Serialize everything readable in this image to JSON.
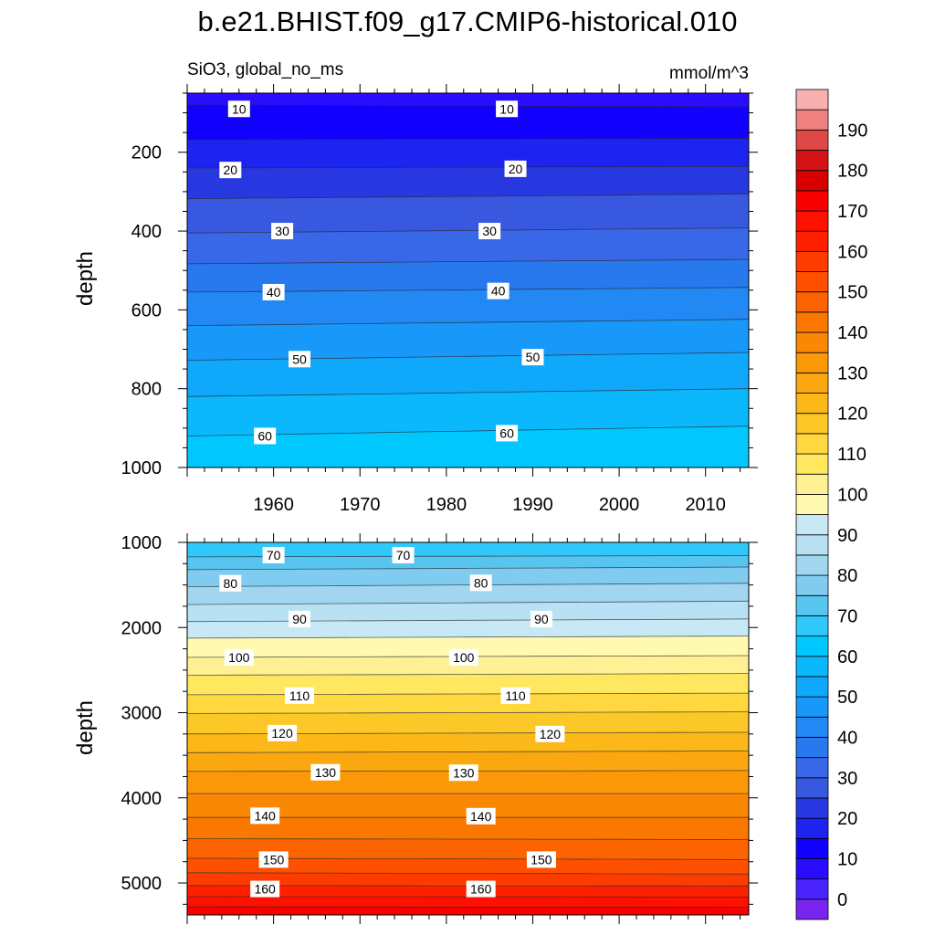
{
  "chart_data": {
    "type": "heatmap",
    "title": "b.e21.BHIST.f09_g17.CMIP6-historical.010",
    "left_label": "SiO3, global_no_ms",
    "units": "mmol/m^3",
    "panels": [
      {
        "name": "upper",
        "xlabel": "",
        "ylabel": "depth",
        "xlim": [
          1950,
          2015
        ],
        "ylim": [
          1000,
          50
        ],
        "y_reversed": true,
        "xticks": [
          1960,
          1970,
          1980,
          1990,
          2000,
          2010
        ],
        "yticks": [
          200,
          400,
          600,
          800,
          1000
        ],
        "contours": [
          {
            "level": 10,
            "y_start": 80,
            "y_end": 85
          },
          {
            "level": 15,
            "y_start": 168,
            "y_end": 165
          },
          {
            "level": 20,
            "y_start": 240,
            "y_end": 236
          },
          {
            "level": 25,
            "y_start": 318,
            "y_end": 306
          },
          {
            "level": 30,
            "y_start": 405,
            "y_end": 392
          },
          {
            "level": 35,
            "y_start": 483,
            "y_end": 472
          },
          {
            "level": 40,
            "y_start": 555,
            "y_end": 543
          },
          {
            "level": 45,
            "y_start": 640,
            "y_end": 624
          },
          {
            "level": 50,
            "y_start": 728,
            "y_end": 708
          },
          {
            "level": 55,
            "y_start": 820,
            "y_end": 800
          },
          {
            "level": 60,
            "y_start": 920,
            "y_end": 895
          }
        ],
        "contour_labels": [
          {
            "text": "10",
            "x": 1956,
            "y": 90
          },
          {
            "text": "10",
            "x": 1987,
            "y": 90
          },
          {
            "text": "20",
            "x": 1955,
            "y": 245
          },
          {
            "text": "20",
            "x": 1988,
            "y": 242
          },
          {
            "text": "30",
            "x": 1961,
            "y": 400
          },
          {
            "text": "30",
            "x": 1985,
            "y": 400
          },
          {
            "text": "40",
            "x": 1960,
            "y": 555
          },
          {
            "text": "40",
            "x": 1986,
            "y": 552
          },
          {
            "text": "50",
            "x": 1963,
            "y": 725
          },
          {
            "text": "50",
            "x": 1990,
            "y": 720
          },
          {
            "text": "60",
            "x": 1959,
            "y": 920
          },
          {
            "text": "60",
            "x": 1987,
            "y": 913
          }
        ]
      },
      {
        "name": "lower",
        "xlabel": "",
        "ylabel": "depth",
        "xlim": [
          1950,
          2015
        ],
        "ylim": [
          5375,
          1000
        ],
        "y_reversed": true,
        "yticks": [
          1000,
          2000,
          3000,
          4000,
          5000
        ],
        "contours": [
          {
            "level": 70,
            "y_start": 1170,
            "y_end": 1155
          },
          {
            "level": 75,
            "y_start": 1320,
            "y_end": 1290
          },
          {
            "level": 80,
            "y_start": 1520,
            "y_end": 1480
          },
          {
            "level": 85,
            "y_start": 1730,
            "y_end": 1690
          },
          {
            "level": 90,
            "y_start": 1930,
            "y_end": 1900
          },
          {
            "level": 95,
            "y_start": 2125,
            "y_end": 2100
          },
          {
            "level": 100,
            "y_start": 2350,
            "y_end": 2330
          },
          {
            "level": 105,
            "y_start": 2560,
            "y_end": 2540
          },
          {
            "level": 110,
            "y_start": 2790,
            "y_end": 2770
          },
          {
            "level": 115,
            "y_start": 3010,
            "y_end": 2990
          },
          {
            "level": 120,
            "y_start": 3250,
            "y_end": 3230
          },
          {
            "level": 125,
            "y_start": 3470,
            "y_end": 3450
          },
          {
            "level": 130,
            "y_start": 3690,
            "y_end": 3680
          },
          {
            "level": 135,
            "y_start": 3950,
            "y_end": 3950
          },
          {
            "level": 140,
            "y_start": 4230,
            "y_end": 4230
          },
          {
            "level": 145,
            "y_start": 4480,
            "y_end": 4490
          },
          {
            "level": 150,
            "y_start": 4710,
            "y_end": 4725
          },
          {
            "level": 155,
            "y_start": 4880,
            "y_end": 4895
          },
          {
            "level": 160,
            "y_start": 5030,
            "y_end": 5035
          },
          {
            "level": 165,
            "y_start": 5160,
            "y_end": 5165
          },
          {
            "level": 170,
            "y_start": 5280,
            "y_end": 5285
          }
        ],
        "contour_labels": [
          {
            "text": "70",
            "x": 1960,
            "y": 1150
          },
          {
            "text": "70",
            "x": 1975,
            "y": 1150
          },
          {
            "text": "80",
            "x": 1955,
            "y": 1480
          },
          {
            "text": "80",
            "x": 1984,
            "y": 1475
          },
          {
            "text": "90",
            "x": 1963,
            "y": 1900
          },
          {
            "text": "90",
            "x": 1991,
            "y": 1900
          },
          {
            "text": "100",
            "x": 1956,
            "y": 2350
          },
          {
            "text": "100",
            "x": 1982,
            "y": 2350
          },
          {
            "text": "110",
            "x": 1963,
            "y": 2800
          },
          {
            "text": "110",
            "x": 1988,
            "y": 2800
          },
          {
            "text": "120",
            "x": 1961,
            "y": 3240
          },
          {
            "text": "120",
            "x": 1992,
            "y": 3250
          },
          {
            "text": "130",
            "x": 1966,
            "y": 3700
          },
          {
            "text": "130",
            "x": 1982,
            "y": 3705
          },
          {
            "text": "140",
            "x": 1959,
            "y": 4210
          },
          {
            "text": "140",
            "x": 1984,
            "y": 4215
          },
          {
            "text": "150",
            "x": 1960,
            "y": 4725
          },
          {
            "text": "150",
            "x": 1991,
            "y": 4725
          },
          {
            "text": "160",
            "x": 1959,
            "y": 5070
          },
          {
            "text": "160",
            "x": 1984,
            "y": 5070
          }
        ]
      }
    ],
    "colorbar": {
      "levels": [
        -5,
        0,
        5,
        10,
        15,
        20,
        25,
        30,
        35,
        40,
        45,
        50,
        55,
        60,
        65,
        70,
        75,
        80,
        85,
        90,
        95,
        100,
        105,
        110,
        115,
        120,
        125,
        130,
        135,
        140,
        145,
        150,
        155,
        160,
        165,
        170,
        175,
        180,
        185,
        190,
        195,
        200
      ],
      "labels": [
        "0",
        "10",
        "20",
        "30",
        "40",
        "50",
        "60",
        "70",
        "80",
        "90",
        "100",
        "110",
        "120",
        "130",
        "140",
        "150",
        "160",
        "170",
        "180",
        "190"
      ],
      "colors": [
        "#7a24f0",
        "#4a24ff",
        "#2a0cff",
        "#1200ff",
        "#1e24f0",
        "#2838e0",
        "#3858e0",
        "#3868e8",
        "#2878ee",
        "#2288f4",
        "#1898f8",
        "#10a8fa",
        "#0cb8fc",
        "#00c8ff",
        "#30c8fa",
        "#58c4f0",
        "#80ccf0",
        "#a0d6f0",
        "#b8e2f4",
        "#c8e8f6",
        "#fffab0",
        "#fff094",
        "#ffe860",
        "#ffd840",
        "#fbc828",
        "#fbb818",
        "#fba810",
        "#fb9808",
        "#fb8804",
        "#fb7800",
        "#fb6400",
        "#ff5000",
        "#ff3c00",
        "#ff2000",
        "#ff1000",
        "#f80000",
        "#d80000",
        "#d41414",
        "#e04848",
        "#f08080",
        "#f8b0b0"
      ]
    }
  }
}
